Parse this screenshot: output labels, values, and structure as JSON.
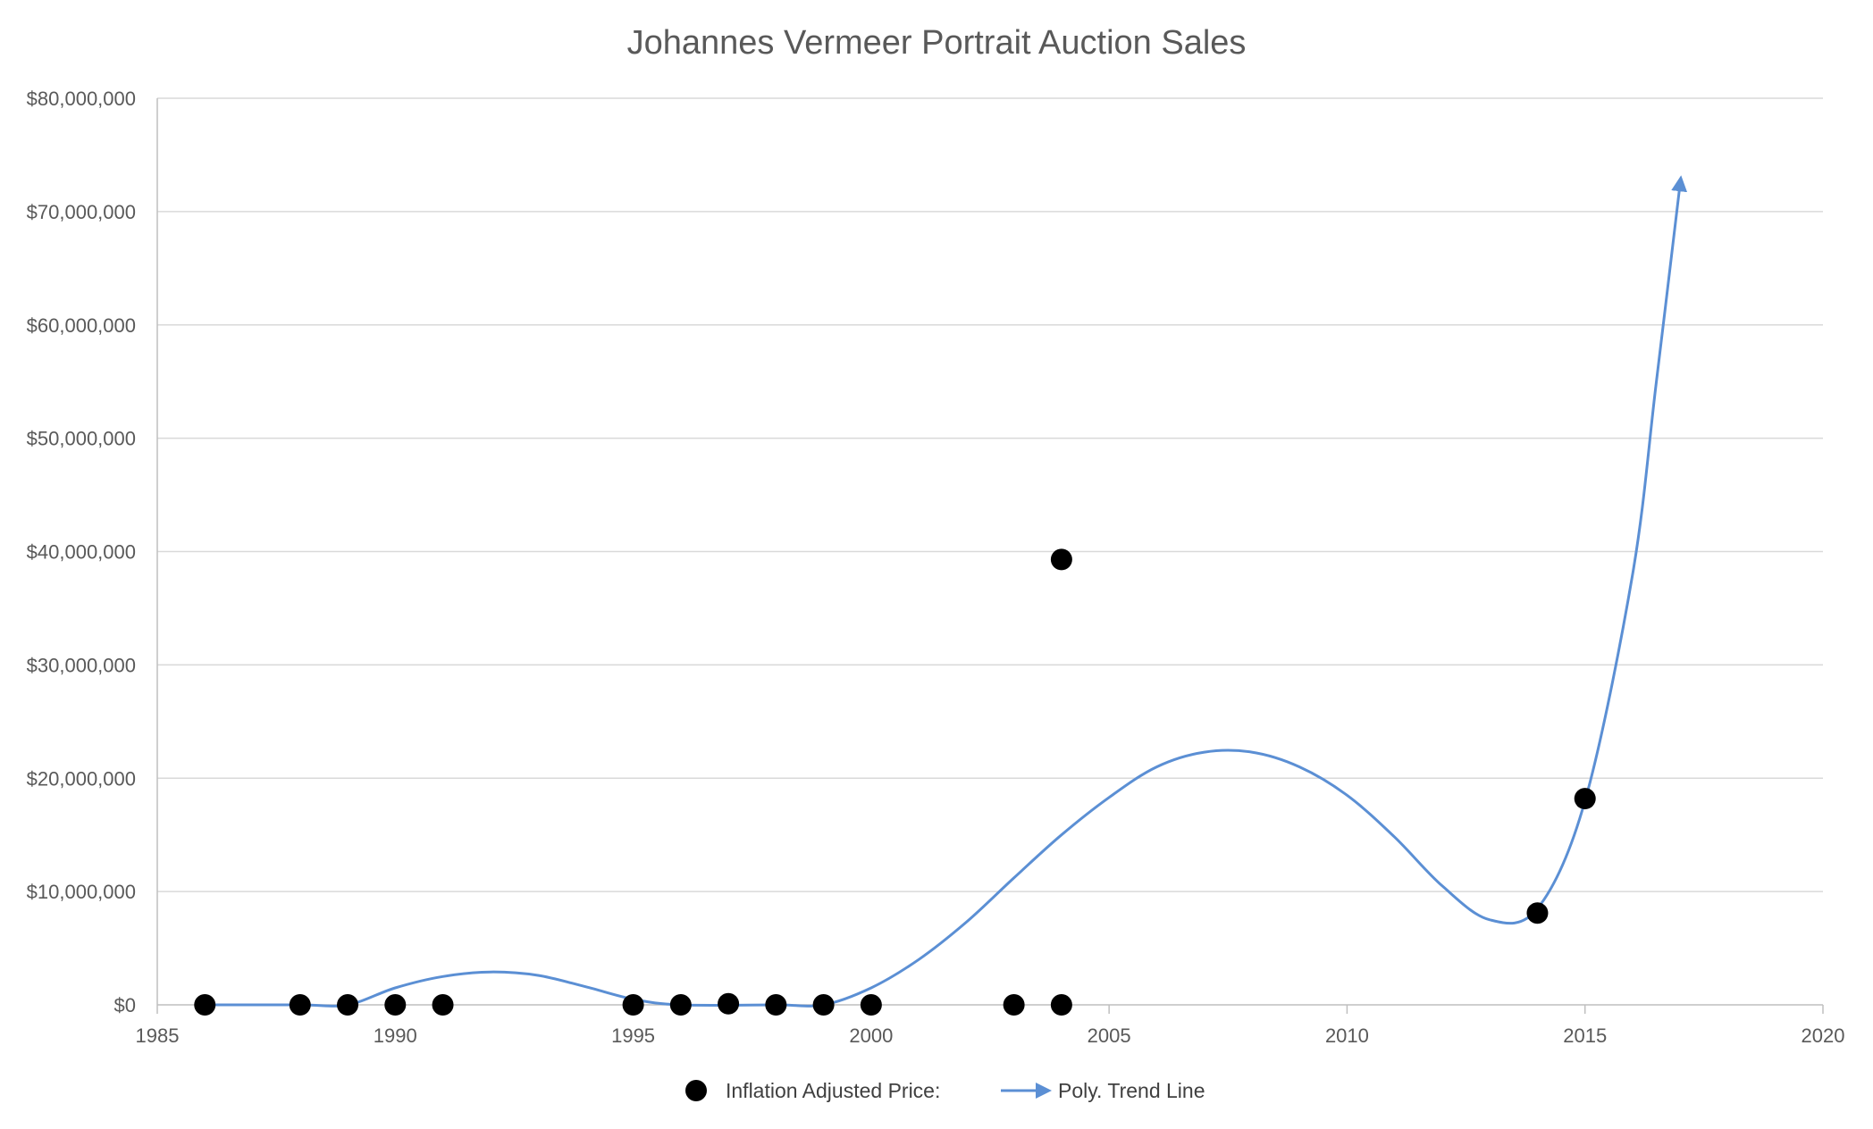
{
  "chart_data": {
    "type": "scatter",
    "title": "Johannes Vermeer Portrait Auction Sales",
    "xlabel": "",
    "ylabel": "",
    "xlim": [
      1985,
      2020
    ],
    "ylim": [
      0,
      80000000
    ],
    "x_ticks": [
      1985,
      1990,
      1995,
      2000,
      2005,
      2010,
      2015,
      2020
    ],
    "x_tick_labels": [
      "1985",
      "1990",
      "1995",
      "2000",
      "2005",
      "2010",
      "2015",
      "2020"
    ],
    "y_ticks": [
      0,
      10000000,
      20000000,
      30000000,
      40000000,
      50000000,
      60000000,
      70000000,
      80000000
    ],
    "y_tick_labels": [
      "$0",
      "$10,000,000",
      "$20,000,000",
      "$30,000,000",
      "$40,000,000",
      "$50,000,000",
      "$60,000,000",
      "$70,000,000",
      "$80,000,000"
    ],
    "grid": "horizontal",
    "legend_position": "bottom",
    "series": [
      {
        "name": "Inflation Adjusted Price:",
        "type": "scatter",
        "color": "#000000",
        "points": [
          {
            "x": 1986,
            "y": 0
          },
          {
            "x": 1988,
            "y": 0
          },
          {
            "x": 1989,
            "y": 0
          },
          {
            "x": 1990,
            "y": 0
          },
          {
            "x": 1991,
            "y": 0
          },
          {
            "x": 1995,
            "y": 0
          },
          {
            "x": 1996,
            "y": 0
          },
          {
            "x": 1997,
            "y": 100000
          },
          {
            "x": 1998,
            "y": 0
          },
          {
            "x": 1999,
            "y": 0
          },
          {
            "x": 2000,
            "y": 0
          },
          {
            "x": 2003,
            "y": 0
          },
          {
            "x": 2004,
            "y": 0
          },
          {
            "x": 2004,
            "y": 39300000
          },
          {
            "x": 2014,
            "y": 8100000
          },
          {
            "x": 2015,
            "y": 18200000
          }
        ]
      },
      {
        "name": "Poly. Trend Line",
        "type": "line",
        "color": "#5b8fd4",
        "points": [
          {
            "x": 1986,
            "y": 0
          },
          {
            "x": 1988,
            "y": 0
          },
          {
            "x": 1989,
            "y": 0
          },
          {
            "x": 1990,
            "y": 1500000
          },
          {
            "x": 1991,
            "y": 2500000
          },
          {
            "x": 1992,
            "y": 2900000
          },
          {
            "x": 1993,
            "y": 2600000
          },
          {
            "x": 1994,
            "y": 1600000
          },
          {
            "x": 1995,
            "y": 500000
          },
          {
            "x": 1996,
            "y": 0
          },
          {
            "x": 1998,
            "y": 0
          },
          {
            "x": 1999,
            "y": 0
          },
          {
            "x": 2000,
            "y": 1500000
          },
          {
            "x": 2001,
            "y": 4000000
          },
          {
            "x": 2002,
            "y": 7300000
          },
          {
            "x": 2003,
            "y": 11200000
          },
          {
            "x": 2004,
            "y": 15000000
          },
          {
            "x": 2005,
            "y": 18300000
          },
          {
            "x": 2006,
            "y": 21000000
          },
          {
            "x": 2007,
            "y": 22300000
          },
          {
            "x": 2008,
            "y": 22300000
          },
          {
            "x": 2009,
            "y": 21000000
          },
          {
            "x": 2010,
            "y": 18500000
          },
          {
            "x": 2011,
            "y": 14800000
          },
          {
            "x": 2012,
            "y": 10500000
          },
          {
            "x": 2013,
            "y": 7500000
          },
          {
            "x": 2014,
            "y": 8500000
          },
          {
            "x": 2015,
            "y": 18000000
          },
          {
            "x": 2016,
            "y": 38000000
          },
          {
            "x": 2016.5,
            "y": 55000000
          },
          {
            "x": 2017,
            "y": 72500000
          }
        ]
      }
    ]
  }
}
